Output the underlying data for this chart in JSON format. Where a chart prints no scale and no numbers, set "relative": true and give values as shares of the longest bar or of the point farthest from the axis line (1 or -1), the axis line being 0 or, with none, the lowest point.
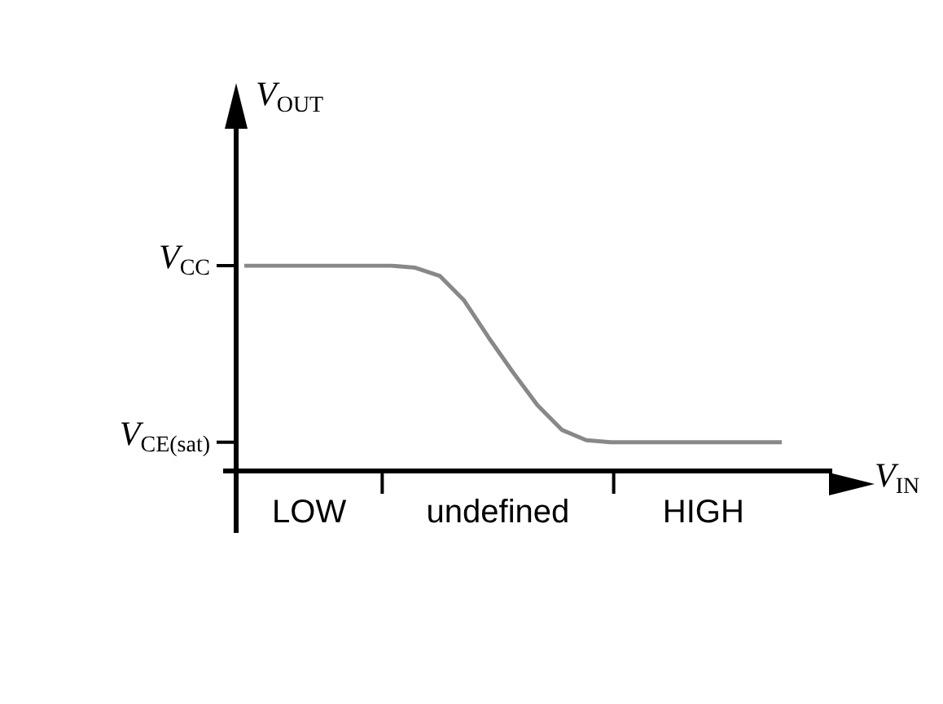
{
  "chart_data": {
    "type": "line",
    "relative": true,
    "xlabel": "V$_{IN}$",
    "ylabel": "V$_{OUT}$",
    "categories": [
      null,
      null,
      null,
      null,
      null,
      null,
      null,
      null,
      null,
      null,
      null,
      null,
      null,
      null,
      null,
      null,
      null,
      null,
      null,
      null,
      null,
      null,
      null
    ],
    "series": [
      {
        "color": "#888888",
        "values": [
          1,
          1,
          1,
          1,
          1,
          1,
          1,
          0.99,
          0.95,
          0.83,
          0.65,
          0.48,
          0.32,
          0.2,
          0.15,
          0.14,
          0.14,
          0.14,
          0.14,
          0.14,
          0.14,
          0.14,
          0.14
        ]
      }
    ],
    "annotations": [
      "V$_{CC}$",
      "V$_{CE(sat)}$",
      "LOW",
      "undefined",
      "HIGH"
    ],
    "marker": "none",
    "line_style": "solid"
  }
}
